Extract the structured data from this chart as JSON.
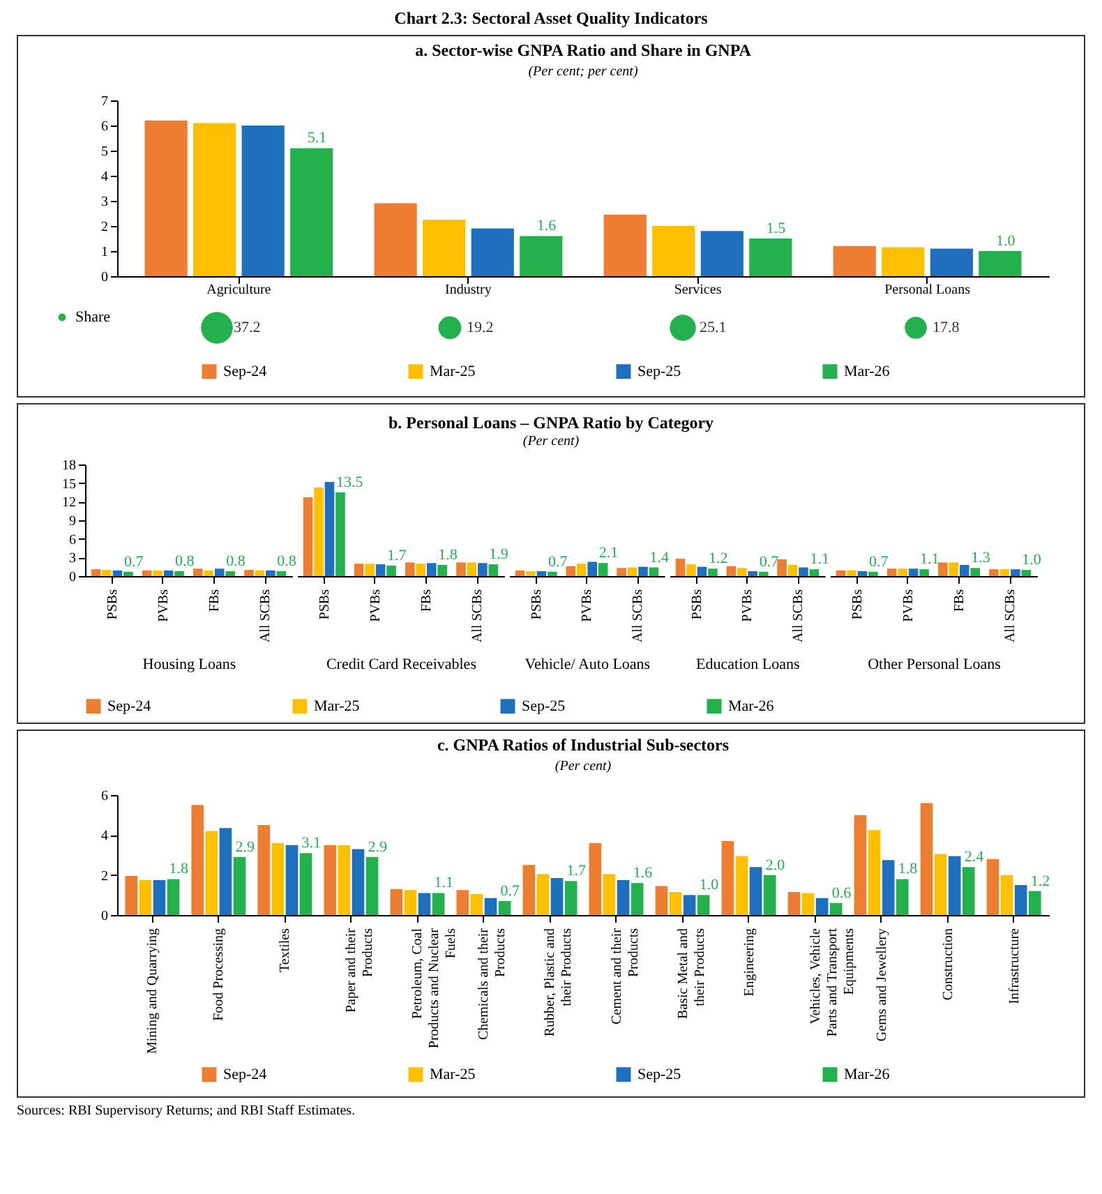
{
  "chart_data": [
    {
      "type": "other",
      "title": "Chart 2.3: Sectoral Asset Quality Indicators"
    },
    {
      "type": "bar",
      "title": "a. Sector-wise GNPA Ratio and Share in GNPA",
      "subtitle": "(Per cent; per cent)",
      "categories": [
        "Agriculture",
        "Industry",
        "Services",
        "Personal Loans"
      ],
      "ylim": [
        0,
        7
      ],
      "yticks": [
        0,
        1,
        2,
        3,
        4,
        5,
        6,
        7
      ],
      "legend": "bottom",
      "series": [
        {
          "name": "Sep-24",
          "color": "#ed7d31",
          "values": [
            6.2,
            2.9,
            2.45,
            1.2
          ]
        },
        {
          "name": "Mar-25",
          "color": "#ffc000",
          "values": [
            6.1,
            2.25,
            2.0,
            1.15
          ]
        },
        {
          "name": "Sep-25",
          "color": "#1f6fbf",
          "values": [
            6.0,
            1.9,
            1.8,
            1.1
          ]
        },
        {
          "name": "Mar-26",
          "color": "#22b14c",
          "values": [
            5.1,
            1.6,
            1.5,
            1.0
          ],
          "value_labels": [
            "5.1",
            "1.6",
            "1.5",
            "1.0"
          ]
        }
      ]
    },
    {
      "type": "other",
      "legend": "left",
      "data_labels": true,
      "series": [
        {
          "name": "Share",
          "color": "#22b14c",
          "values": [
            37.2,
            19.2,
            25.1,
            17.8
          ]
        }
      ]
    },
    {
      "type": "other",
      "title": "b. Personal Loans – GNPA Ratio by Category",
      "subtitle": "(Per cent)"
    },
    {
      "type": "bar",
      "xlabel": "Housing Loans",
      "categories": [
        "PSBs",
        "PVBs",
        "FBs",
        "All SCBs"
      ],
      "ylim": [
        0,
        18
      ],
      "yticks": [
        0,
        3,
        6,
        9,
        12,
        15,
        18
      ],
      "legend": "bottom",
      "series": [
        {
          "name": "Sep-24",
          "color": "#ed7d31",
          "values": [
            1.1,
            0.9,
            1.2,
            1.0
          ]
        },
        {
          "name": "Mar-25",
          "color": "#ffc000",
          "values": [
            1.0,
            0.9,
            0.9,
            0.9
          ]
        },
        {
          "name": "Sep-25",
          "color": "#1f6fbf",
          "values": [
            0.9,
            0.9,
            1.2,
            0.9
          ]
        },
        {
          "name": "Mar-26",
          "color": "#22b14c",
          "values": [
            0.7,
            0.8,
            0.8,
            0.8
          ],
          "value_labels": [
            "0.7",
            "0.8",
            "0.8",
            "0.8"
          ]
        }
      ]
    },
    {
      "type": "bar",
      "xlabel": "Credit Card Receivables",
      "categories": [
        "PSBs",
        "PVBs",
        "FBs",
        "All SCBs"
      ],
      "ylim": [
        0,
        18
      ],
      "tick_labels": "x",
      "series": [
        {
          "color": "#ed7d31",
          "values": [
            12.7,
            2.0,
            2.2,
            2.2
          ]
        },
        {
          "color": "#ffc000",
          "values": [
            14.3,
            2.0,
            2.0,
            2.2
          ]
        },
        {
          "color": "#1f6fbf",
          "values": [
            15.2,
            1.9,
            2.1,
            2.1
          ]
        },
        {
          "color": "#22b14c",
          "values": [
            13.5,
            1.7,
            1.8,
            1.9
          ],
          "value_labels": [
            "13.5",
            "1.7",
            "1.8",
            "1.9"
          ]
        }
      ]
    },
    {
      "type": "bar",
      "xlabel": "Vehicle/ Auto Loans",
      "categories": [
        "PSBs",
        "PVBs",
        "All SCBs"
      ],
      "ylim": [
        0,
        18
      ],
      "tick_labels": "x",
      "series": [
        {
          "color": "#ed7d31",
          "values": [
            0.9,
            1.6,
            1.3
          ]
        },
        {
          "color": "#ffc000",
          "values": [
            0.8,
            2.0,
            1.4
          ]
        },
        {
          "color": "#1f6fbf",
          "values": [
            0.8,
            2.3,
            1.5
          ]
        },
        {
          "color": "#22b14c",
          "values": [
            0.7,
            2.1,
            1.4
          ],
          "value_labels": [
            "0.7",
            "2.1",
            "1.4"
          ]
        }
      ]
    },
    {
      "type": "bar",
      "xlabel": "Education Loans",
      "categories": [
        "PSBs",
        "PVBs",
        "All SCBs"
      ],
      "ylim": [
        0,
        18
      ],
      "tick_labels": "x",
      "series": [
        {
          "color": "#ed7d31",
          "values": [
            2.8,
            1.6,
            2.7
          ]
        },
        {
          "color": "#ffc000",
          "values": [
            1.9,
            1.3,
            1.8
          ]
        },
        {
          "color": "#1f6fbf",
          "values": [
            1.5,
            0.8,
            1.4
          ]
        },
        {
          "color": "#22b14c",
          "values": [
            1.2,
            0.7,
            1.1
          ],
          "value_labels": [
            "1.2",
            "0.7",
            "1.1"
          ]
        }
      ]
    },
    {
      "type": "bar",
      "xlabel": "Other Personal Loans",
      "categories": [
        "PSBs",
        "PVBs",
        "FBs",
        "All SCBs"
      ],
      "ylim": [
        0,
        18
      ],
      "tick_labels": "x",
      "series": [
        {
          "color": "#ed7d31",
          "values": [
            0.9,
            1.2,
            2.2,
            1.1
          ]
        },
        {
          "color": "#ffc000",
          "values": [
            0.9,
            1.2,
            2.2,
            1.1
          ]
        },
        {
          "color": "#1f6fbf",
          "values": [
            0.8,
            1.2,
            1.8,
            1.1
          ]
        },
        {
          "color": "#22b14c",
          "values": [
            0.7,
            1.1,
            1.3,
            1.0
          ],
          "value_labels": [
            "0.7",
            "1.1",
            "1.3",
            "1.0"
          ]
        }
      ]
    },
    {
      "type": "bar",
      "title": "c. GNPA Ratios of Industrial Sub-sectors",
      "subtitle": "(Per cent)",
      "categories": [
        "Mining and Quarrying",
        "Food Processing",
        "Textiles",
        "Paper and their Products",
        "Petroleum, Coal Products and Nuclear Fuels",
        "Chemicals and their Products",
        "Rubber, Plastic and their Products",
        "Cement and their Products",
        "Basic Metal and their Products",
        "Engineering",
        "Vehicles, Vehicle Parts and Transport Equipments",
        "Gems and Jewellery",
        "Construction",
        "Infrastructure"
      ],
      "ylim": [
        0,
        6
      ],
      "yticks": [
        0,
        2,
        4,
        6
      ],
      "legend": "bottom",
      "annotations": [
        "Sources: RBI Supervisory Returns; and RBI Staff Estimates."
      ],
      "series": [
        {
          "name": "Sep-24",
          "color": "#ed7d31",
          "values": [
            1.95,
            5.5,
            4.5,
            3.5,
            1.3,
            1.25,
            2.5,
            3.6,
            1.45,
            3.7,
            1.15,
            5.0,
            5.6,
            2.8
          ]
        },
        {
          "name": "Mar-25",
          "color": "#ffc000",
          "values": [
            1.75,
            4.2,
            3.6,
            3.5,
            1.25,
            1.05,
            2.05,
            2.05,
            1.15,
            2.95,
            1.1,
            4.25,
            3.05,
            2.0
          ]
        },
        {
          "name": "Sep-25",
          "color": "#1f6fbf",
          "values": [
            1.75,
            4.35,
            3.5,
            3.3,
            1.1,
            0.85,
            1.85,
            1.75,
            1.0,
            2.4,
            0.85,
            2.75,
            2.95,
            1.5
          ]
        },
        {
          "name": "Mar-26",
          "color": "#22b14c",
          "values": [
            1.8,
            2.9,
            3.1,
            2.9,
            1.1,
            0.7,
            1.7,
            1.6,
            1.0,
            2.0,
            0.6,
            1.8,
            2.4,
            1.2
          ],
          "value_labels": [
            "1.8",
            "2.9",
            "3.1",
            "2.9",
            "1.1",
            "0.7",
            "1.7",
            "1.6",
            "1.0",
            "2.0",
            "0.6",
            "1.8",
            "2.4",
            "1.2"
          ]
        }
      ]
    }
  ]
}
